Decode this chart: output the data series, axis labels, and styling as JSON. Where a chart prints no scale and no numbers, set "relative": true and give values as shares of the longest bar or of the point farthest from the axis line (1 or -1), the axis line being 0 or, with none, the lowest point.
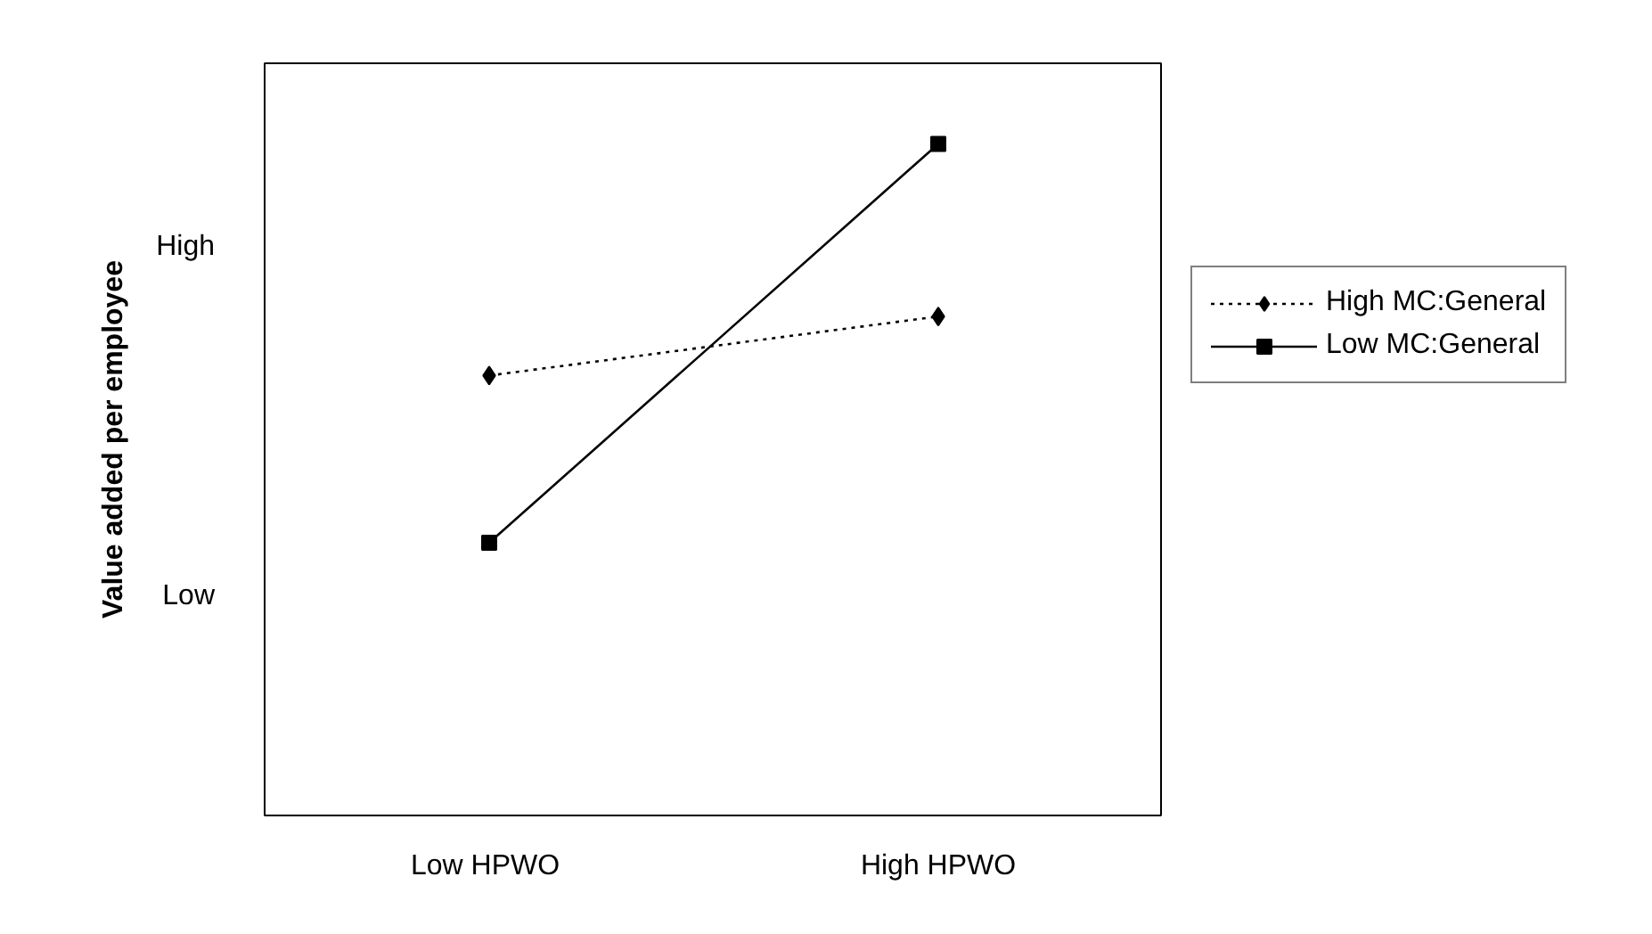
{
  "chart_data": {
    "type": "line",
    "relative": true,
    "ylabel": "Value added per employee",
    "categories": [
      "Low  HPWO",
      "High HPWO"
    ],
    "annotations": [
      "High",
      "Low"
    ],
    "series": [
      {
        "name": "High MC:General",
        "color": "#000000",
        "values": [
          0.655,
          0.743
        ],
        "marker": "diamond",
        "line_style": "dotted"
      },
      {
        "name": "Low MC:General",
        "color": "#000000",
        "values": [
          0.406,
          1
        ],
        "marker": "square",
        "line_style": "solid"
      }
    ],
    "grid": false,
    "legend": "right"
  }
}
